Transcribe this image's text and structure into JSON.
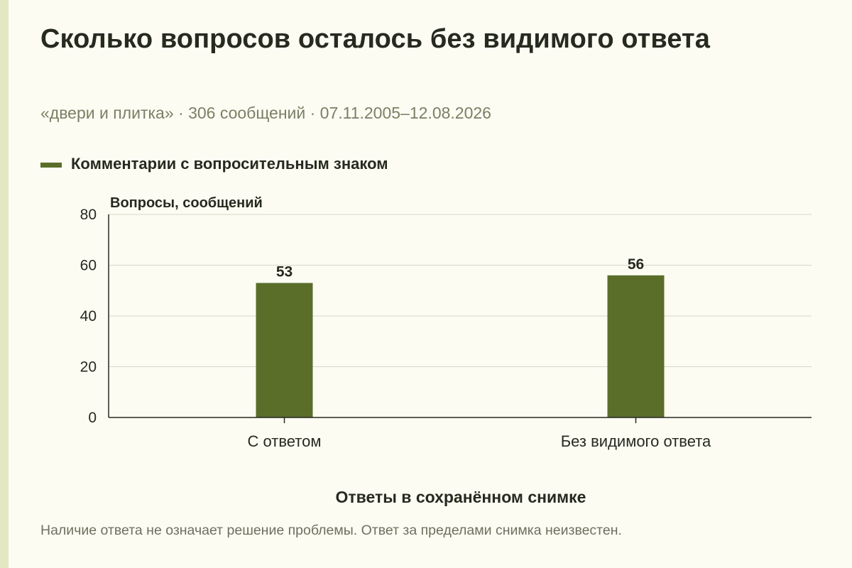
{
  "title": "Сколько вопросов осталось без видимого ответа",
  "subtitle": "«двери и плитка» · 306 сообщений · 07.11.2005–12.08.2026",
  "legend": {
    "label": "Комментарии с вопросительным знаком",
    "color": "#5a6e2a"
  },
  "footnote": "Наличие ответа не означает решение проблемы. Ответ за пределами снимка неизвестен.",
  "chart_data": {
    "type": "bar",
    "categories": [
      "С ответом",
      "Без видимого ответа"
    ],
    "series": [
      {
        "name": "Комментарии с вопросительным знаком",
        "values": [
          53,
          56
        ],
        "color": "#5a6e2a"
      }
    ],
    "xlabel": "Ответы в сохранённом снимке",
    "ylabel": "Вопросы, сообщений",
    "ylim": [
      0,
      80
    ],
    "yticks": [
      0,
      20,
      40,
      60,
      80
    ],
    "grid": true,
    "legend_position": "top-left",
    "data_labels": true
  }
}
